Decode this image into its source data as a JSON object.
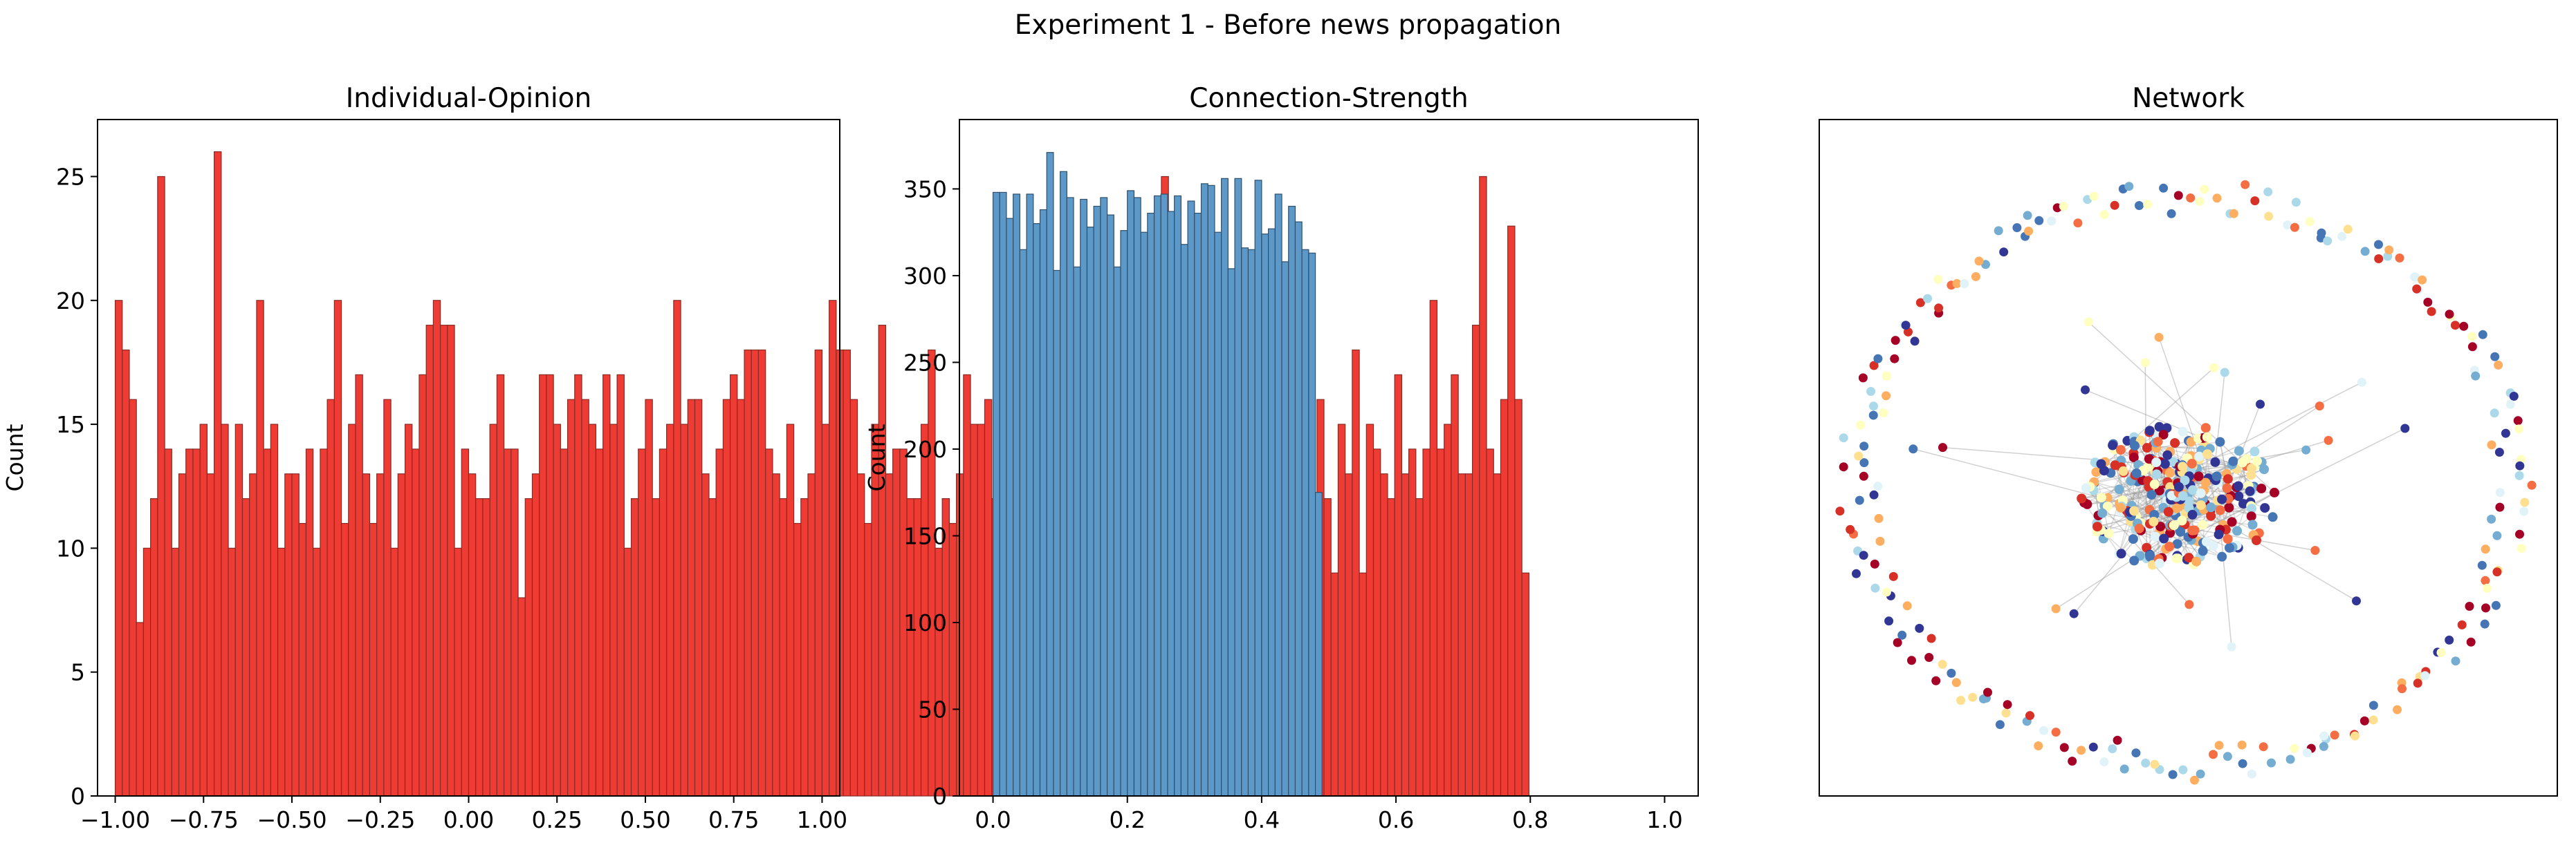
{
  "figure": {
    "suptitle": "Experiment 1 - Before news propagation"
  },
  "chart_data": [
    {
      "type": "bar",
      "title": "Individual-Opinion",
      "xlabel": "",
      "ylabel": "Count",
      "xlim": [
        -1.05,
        1.05
      ],
      "ylim": [
        0,
        27.3
      ],
      "bin_start": -1.0,
      "bin_width": 0.02,
      "values": [
        20,
        18,
        16,
        7,
        10,
        12,
        25,
        14,
        10,
        13,
        14,
        14,
        15,
        13,
        26,
        15,
        10,
        15,
        12,
        13,
        20,
        14,
        15,
        10,
        13,
        13,
        11,
        14,
        10,
        14,
        16,
        20,
        11,
        15,
        17,
        13,
        11,
        13,
        16,
        10,
        13,
        15,
        14,
        17,
        19,
        20,
        19,
        19,
        10,
        14,
        13,
        12,
        12,
        15,
        17,
        14,
        14,
        8,
        12,
        13,
        17,
        17,
        15,
        14,
        16,
        17,
        16,
        15,
        14,
        17,
        15,
        17,
        10,
        12,
        14,
        16,
        12,
        14,
        15,
        20,
        15,
        16,
        16,
        13,
        12,
        14,
        16,
        17,
        16,
        18,
        18,
        18,
        14,
        13,
        12,
        15,
        11,
        12,
        13,
        18,
        15,
        20,
        18,
        18,
        16,
        13,
        11,
        15,
        19,
        13,
        14,
        14,
        12,
        12,
        15,
        18,
        10,
        12,
        11,
        13,
        17,
        15,
        15,
        16,
        12,
        13,
        17,
        14,
        17,
        15,
        14,
        18,
        17,
        14,
        17,
        14,
        17,
        19,
        17,
        18,
        12,
        16,
        17,
        15,
        10,
        17,
        12,
        18,
        25,
        14,
        11,
        12,
        13,
        14,
        14,
        13,
        12,
        14,
        17,
        12,
        14,
        12,
        13,
        18,
        15,
        12,
        18,
        17,
        18,
        10,
        16,
        12,
        9,
        15,
        13,
        18,
        9,
        15,
        14,
        13,
        12,
        17,
        13,
        14,
        12,
        14,
        20,
        14,
        15,
        17,
        13,
        13,
        19,
        25,
        14,
        13,
        16,
        23,
        16,
        9
      ],
      "xticks": [
        -1.0,
        -0.75,
        -0.5,
        -0.25,
        0.0,
        0.25,
        0.5,
        0.75,
        1.0
      ],
      "xtick_labels": [
        "−1.00",
        "−0.75",
        "−0.50",
        "−0.25",
        "0.00",
        "0.25",
        "0.50",
        "0.75",
        "1.00"
      ],
      "yticks": [
        0,
        5,
        10,
        15,
        20,
        25
      ],
      "ytick_labels": [
        "0",
        "5",
        "10",
        "15",
        "20",
        "25"
      ],
      "bar_color": "#ee3b33",
      "edge_color": "#8a2a25",
      "grid": false
    },
    {
      "type": "bar",
      "title": "Connection-Strength",
      "xlabel": "",
      "ylabel": "Count",
      "xlim": [
        -0.05,
        1.05
      ],
      "ylim": [
        0,
        390
      ],
      "bin_start": 0.0,
      "bin_width": 0.01,
      "values": [
        348,
        348,
        333,
        347,
        315,
        347,
        330,
        338,
        371,
        303,
        360,
        345,
        305,
        344,
        328,
        340,
        345,
        335,
        305,
        326,
        349,
        345,
        325,
        336,
        346,
        347,
        337,
        346,
        318,
        343,
        336,
        353,
        352,
        325,
        356,
        304,
        356,
        316,
        315,
        355,
        324,
        327,
        347,
        308,
        340,
        331,
        315,
        313,
        175
      ],
      "xticks": [
        0.0,
        0.2,
        0.4,
        0.6,
        0.8,
        1.0
      ],
      "xtick_labels": [
        "0.0",
        "0.2",
        "0.4",
        "0.6",
        "0.8",
        "1.0"
      ],
      "yticks": [
        0,
        50,
        100,
        150,
        200,
        250,
        300,
        350
      ],
      "ytick_labels": [
        "0",
        "50",
        "100",
        "150",
        "200",
        "250",
        "300",
        "350"
      ],
      "bar_color": "#5d99c8",
      "edge_color": "#2f4f6a",
      "grid": false
    },
    {
      "type": "scatter",
      "title": "Network",
      "description_kind": "network graph",
      "node_count": 560,
      "ring_node_count": 220,
      "core_node_count": 320,
      "outlier_node_count": 20,
      "palette": [
        "#a50026",
        "#d73027",
        "#f46d43",
        "#fdae61",
        "#fee090",
        "#ffffbf",
        "#e0f3f8",
        "#abd9e9",
        "#74add1",
        "#4575b4",
        "#313695"
      ],
      "edge_color": "#999999",
      "axes_visible": false
    }
  ]
}
